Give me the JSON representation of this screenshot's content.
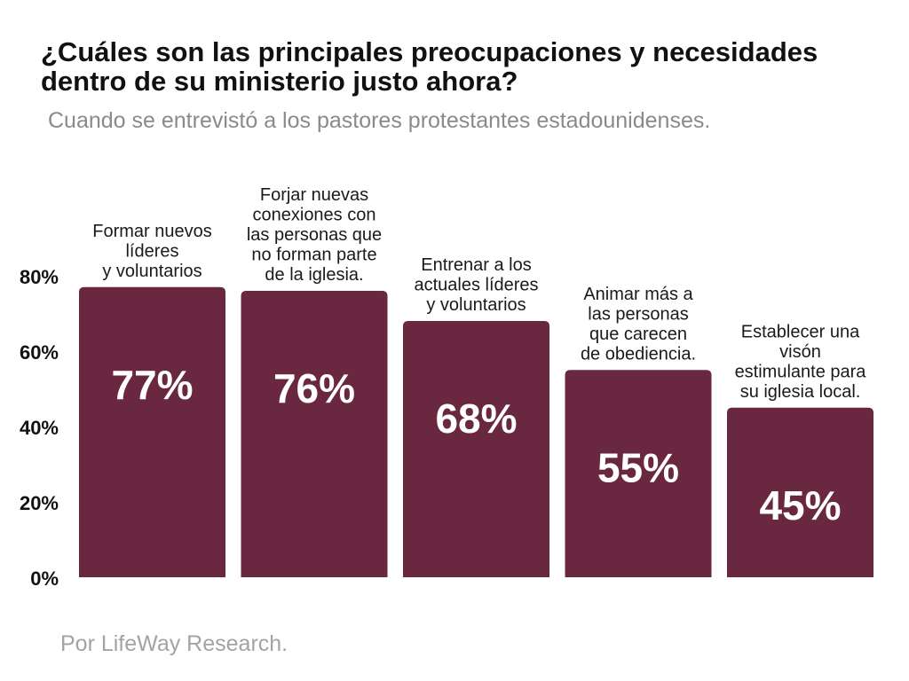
{
  "title": "¿Cuáles son las principales preocupaciones y necesidades dentro de su ministerio justo ahora?",
  "subtitle": "Cuando se entrevistó a los pastores protestantes estadounidenses.",
  "source": "Por LifeWay Research.",
  "chart_data": {
    "type": "bar",
    "categories": [
      [
        "Formar nuevos",
        "líderes",
        "y voluntarios"
      ],
      [
        "Forjar nuevas",
        "conexiones con",
        "las personas que",
        "no forman parte",
        "de la iglesia."
      ],
      [
        "Entrenar a los",
        "actuales líderes",
        "y voluntarios"
      ],
      [
        "Animar más a",
        "las personas",
        "que carecen",
        "de obediencia."
      ],
      [
        "Establecer una",
        "visón",
        "estimulante para",
        "su iglesia local."
      ]
    ],
    "values": [
      77,
      76,
      68,
      55,
      45
    ],
    "value_labels": [
      "77%",
      "76%",
      "68%",
      "55%",
      "45%"
    ],
    "yticks": [
      "0%",
      "20%",
      "40%",
      "60%",
      "80%"
    ],
    "ytick_values": [
      0,
      20,
      40,
      60,
      80
    ],
    "ylim": [
      0,
      80
    ],
    "bar_color": "#6a2740",
    "label_color": "#ffffff",
    "grid": false,
    "legend": "none"
  }
}
